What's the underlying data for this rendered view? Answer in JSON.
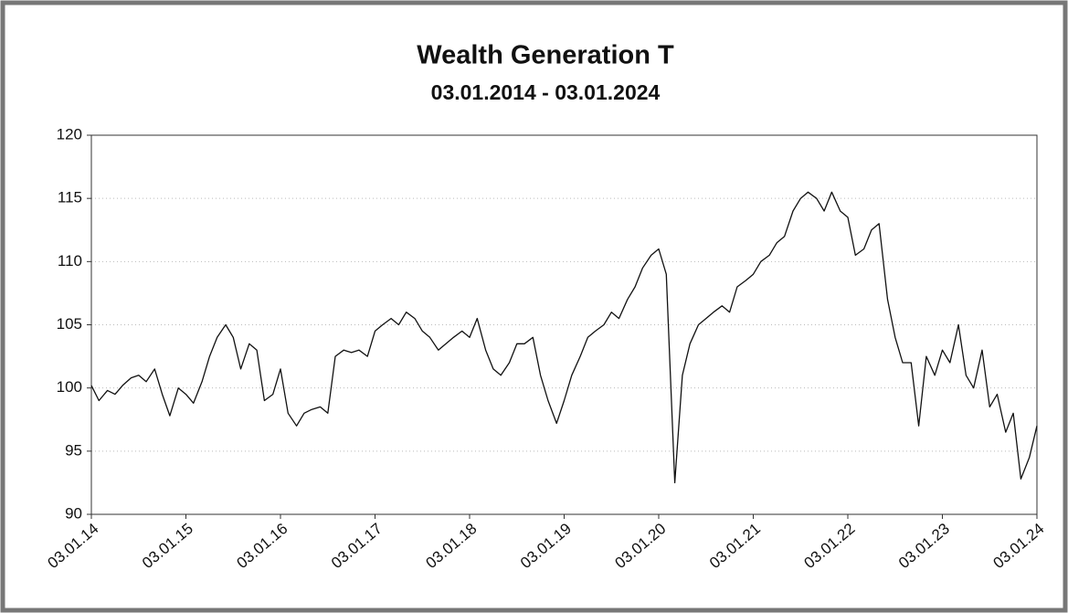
{
  "chart_data": {
    "type": "line",
    "title": "Wealth Generation T",
    "subtitle": "03.01.2014 - 03.01.2024",
    "x": [
      2014,
      2014.08,
      2014.17,
      2014.25,
      2014.33,
      2014.42,
      2014.5,
      2014.58,
      2014.67,
      2014.75,
      2014.83,
      2014.92,
      2015,
      2015.08,
      2015.17,
      2015.25,
      2015.33,
      2015.42,
      2015.5,
      2015.58,
      2015.67,
      2015.75,
      2015.83,
      2015.92,
      2016,
      2016.08,
      2016.17,
      2016.25,
      2016.33,
      2016.42,
      2016.5,
      2016.58,
      2016.67,
      2016.75,
      2016.83,
      2016.92,
      2017,
      2017.08,
      2017.17,
      2017.25,
      2017.33,
      2017.42,
      2017.5,
      2017.58,
      2017.67,
      2017.75,
      2017.83,
      2017.92,
      2018,
      2018.08,
      2018.17,
      2018.25,
      2018.33,
      2018.42,
      2018.5,
      2018.58,
      2018.67,
      2018.75,
      2018.83,
      2018.92,
      2019,
      2019.08,
      2019.17,
      2019.25,
      2019.33,
      2019.42,
      2019.5,
      2019.58,
      2019.67,
      2019.75,
      2019.83,
      2019.92,
      2020,
      2020.08,
      2020.17,
      2020.25,
      2020.33,
      2020.42,
      2020.5,
      2020.58,
      2020.67,
      2020.75,
      2020.83,
      2020.92,
      2021,
      2021.08,
      2021.17,
      2021.25,
      2021.33,
      2021.42,
      2021.5,
      2021.58,
      2021.67,
      2021.75,
      2021.83,
      2021.92,
      2022,
      2022.08,
      2022.17,
      2022.25,
      2022.33,
      2022.42,
      2022.5,
      2022.58,
      2022.67,
      2022.75,
      2022.83,
      2022.92,
      2023,
      2023.08,
      2023.17,
      2023.25,
      2023.33,
      2023.42,
      2023.5,
      2023.58,
      2023.67,
      2023.75,
      2023.83,
      2023.92,
      2024
    ],
    "series": [
      {
        "name": "Wealth Generation T",
        "color": "#111111",
        "values": [
          100.2,
          99,
          99.8,
          99.5,
          100.2,
          100.8,
          101,
          100.5,
          101.5,
          99.5,
          97.8,
          100,
          99.5,
          98.8,
          100.5,
          102.5,
          104,
          105,
          104,
          101.5,
          103.5,
          103,
          99,
          99.5,
          101.5,
          98,
          97,
          98,
          98.3,
          98.5,
          98,
          102.5,
          103,
          102.8,
          103,
          102.5,
          104.5,
          105,
          105.5,
          105,
          106,
          105.5,
          104.5,
          104,
          103,
          103.5,
          104,
          104.5,
          104,
          105.5,
          103,
          101.5,
          101,
          102,
          103.5,
          103.5,
          104,
          101,
          99,
          97.2,
          99,
          101,
          102.5,
          104,
          104.5,
          105,
          106,
          105.5,
          107,
          108,
          109.5,
          110.5,
          111,
          109,
          92.5,
          101,
          103.5,
          105,
          105.5,
          106,
          106.5,
          106,
          108,
          108.5,
          109,
          110,
          110.5,
          111.5,
          112,
          114,
          115,
          115.5,
          115,
          114,
          115.5,
          114,
          113.5,
          110.5,
          111,
          112.5,
          113,
          107,
          104,
          102,
          102,
          97,
          102.5,
          101,
          103,
          102,
          105,
          101,
          100,
          103,
          98.5,
          99.5,
          96.5,
          98,
          92.8,
          94.5,
          97
        ]
      }
    ],
    "xlim": [
      2014,
      2024
    ],
    "xticks": [
      {
        "value": 2014,
        "label": "03.01.14"
      },
      {
        "value": 2015,
        "label": "03.01.15"
      },
      {
        "value": 2016,
        "label": "03.01.16"
      },
      {
        "value": 2017,
        "label": "03.01.17"
      },
      {
        "value": 2018,
        "label": "03.01.18"
      },
      {
        "value": 2019,
        "label": "03.01.19"
      },
      {
        "value": 2020,
        "label": "03.01.20"
      },
      {
        "value": 2021,
        "label": "03.01.21"
      },
      {
        "value": 2022,
        "label": "03.01.22"
      },
      {
        "value": 2023,
        "label": "03.01.23"
      },
      {
        "value": 2024,
        "label": "03.01.24"
      }
    ],
    "ylim": [
      90,
      120
    ],
    "yticks": [
      90,
      95,
      100,
      105,
      110,
      115,
      120
    ],
    "grid": true
  }
}
